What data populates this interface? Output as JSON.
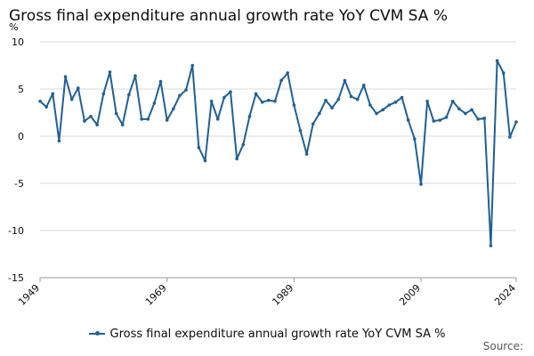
{
  "title": "Gross final expenditure annual growth rate YoY CVM SA %",
  "source_label": "Source:",
  "colors": {
    "series": "#206095",
    "grid": "#d9d9d9",
    "axis": "#999999",
    "text": "#0b0c0c"
  },
  "chart_data": {
    "type": "line",
    "title": "Gross final expenditure annual growth rate YoY CVM SA %",
    "ylabel": "%",
    "xlabel": "",
    "ylim": [
      -15,
      10
    ],
    "yticks": [
      10,
      5,
      0,
      -5,
      -10,
      -15
    ],
    "xlim": [
      1949,
      2024
    ],
    "xticks": [
      1949,
      1969,
      1989,
      2009,
      2024
    ],
    "series": [
      {
        "name": "Gross final expenditure annual growth rate YoY CVM SA %",
        "x": [
          1949,
          1950,
          1951,
          1952,
          1953,
          1954,
          1955,
          1956,
          1957,
          1958,
          1959,
          1960,
          1961,
          1962,
          1963,
          1964,
          1965,
          1966,
          1967,
          1968,
          1969,
          1970,
          1971,
          1972,
          1973,
          1974,
          1975,
          1976,
          1977,
          1978,
          1979,
          1980,
          1981,
          1982,
          1983,
          1984,
          1985,
          1986,
          1987,
          1988,
          1989,
          1990,
          1991,
          1992,
          1993,
          1994,
          1995,
          1996,
          1997,
          1998,
          1999,
          2000,
          2001,
          2002,
          2003,
          2004,
          2005,
          2006,
          2007,
          2008,
          2009,
          2010,
          2011,
          2012,
          2013,
          2014,
          2015,
          2016,
          2017,
          2018,
          2019,
          2020,
          2021,
          2022,
          2023,
          2024
        ],
        "values": [
          3.7,
          3.1,
          4.5,
          -0.5,
          6.3,
          3.9,
          5.1,
          1.6,
          2.1,
          1.2,
          4.5,
          6.8,
          2.4,
          1.2,
          4.4,
          6.4,
          1.8,
          1.8,
          3.5,
          5.8,
          1.7,
          2.9,
          4.3,
          4.9,
          7.5,
          -1.2,
          -2.6,
          3.7,
          1.8,
          4.1,
          4.7,
          -2.4,
          -0.9,
          2.1,
          4.5,
          3.6,
          3.8,
          3.7,
          5.9,
          6.7,
          3.3,
          0.6,
          -1.9,
          1.3,
          2.4,
          3.8,
          3.0,
          3.9,
          5.9,
          4.2,
          3.9,
          5.4,
          3.3,
          2.4,
          2.8,
          3.3,
          3.6,
          4.1,
          1.7,
          -0.3,
          -5.1,
          3.7,
          1.6,
          1.7,
          2.0,
          3.7,
          2.9,
          2.4,
          2.8,
          1.8,
          1.9,
          -11.6,
          8.0,
          6.7,
          -0.1,
          1.5
        ]
      }
    ]
  }
}
